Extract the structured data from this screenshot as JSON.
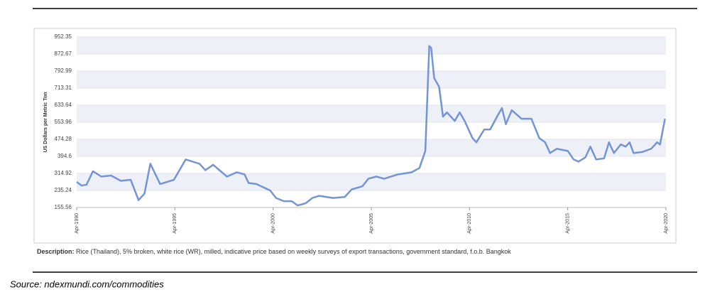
{
  "chart_data": {
    "type": "line",
    "y_label": "US Dollars per Metric Ton",
    "x": [
      1990.25,
      1990.5,
      1990.75,
      1991.08,
      1991.5,
      1992.0,
      1992.5,
      1993.0,
      1993.4,
      1993.7,
      1994.0,
      1994.5,
      1995.2,
      1995.8,
      1996.5,
      1996.8,
      1997.2,
      1997.9,
      1998.4,
      1998.8,
      1999.0,
      1999.4,
      2000.1,
      2000.4,
      2000.8,
      2001.2,
      2001.5,
      2001.9,
      2002.25,
      2002.6,
      2003.3,
      2003.9,
      2004.25,
      2004.8,
      2005.1,
      2005.5,
      2005.9,
      2006.6,
      2007.3,
      2007.7,
      2008.0,
      2008.2,
      2008.3,
      2008.45,
      2008.7,
      2008.9,
      2009.1,
      2009.5,
      2009.75,
      2010.0,
      2010.4,
      2010.6,
      2011.0,
      2011.3,
      2011.65,
      2011.9,
      2012.1,
      2012.4,
      2012.9,
      2013.4,
      2013.8,
      2014.1,
      2014.35,
      2014.7,
      2015.25,
      2015.55,
      2015.8,
      2016.15,
      2016.4,
      2016.7,
      2017.1,
      2017.35,
      2017.6,
      2017.95,
      2018.2,
      2018.4,
      2018.6,
      2019.05,
      2019.5,
      2019.8,
      2019.95,
      2020.2
    ],
    "series": [
      {
        "name": "Rice (Thailand)",
        "color": "#7494d4",
        "values": [
          275,
          258,
          262,
          325,
          300,
          305,
          280,
          285,
          190,
          220,
          360,
          265,
          285,
          380,
          360,
          330,
          355,
          300,
          320,
          310,
          270,
          265,
          235,
          200,
          185,
          185,
          165,
          175,
          200,
          210,
          200,
          205,
          240,
          255,
          290,
          300,
          290,
          310,
          320,
          340,
          420,
          910,
          900,
          760,
          720,
          580,
          600,
          560,
          600,
          560,
          480,
          460,
          520,
          520,
          580,
          620,
          545,
          610,
          570,
          570,
          480,
          460,
          410,
          430,
          420,
          380,
          370,
          390,
          440,
          380,
          385,
          460,
          410,
          450,
          440,
          460,
          410,
          415,
          430,
          460,
          450,
          570
        ]
      }
    ],
    "xlim": [
      1990.25,
      2020.25
    ],
    "xticks": [
      {
        "value": 1990.25,
        "label": "Apr-1990"
      },
      {
        "value": 1995.25,
        "label": "Apr-1995"
      },
      {
        "value": 2000.25,
        "label": "Apr-2000"
      },
      {
        "value": 2005.25,
        "label": "Apr-2005"
      },
      {
        "value": 2010.25,
        "label": "Apr-2010"
      },
      {
        "value": 2015.25,
        "label": "Apr-2015"
      },
      {
        "value": 2020.25,
        "label": "Apr-2020"
      }
    ],
    "ylim": [
      155.56,
      952.35
    ],
    "yticks": [
      155.56,
      235.24,
      314.92,
      394.6,
      474.28,
      553.96,
      633.64,
      713.31,
      792.99,
      872.67,
      952.35
    ],
    "grid": true
  },
  "description": {
    "label": "Description:",
    "text": "Rice (Thailand), 5% broken, white rice (WR), milled, indicative price based on weekly surveys of export transactions, government standard, f.o.b. Bangkok"
  },
  "source": "Source: ndexmundi.com/commodities"
}
